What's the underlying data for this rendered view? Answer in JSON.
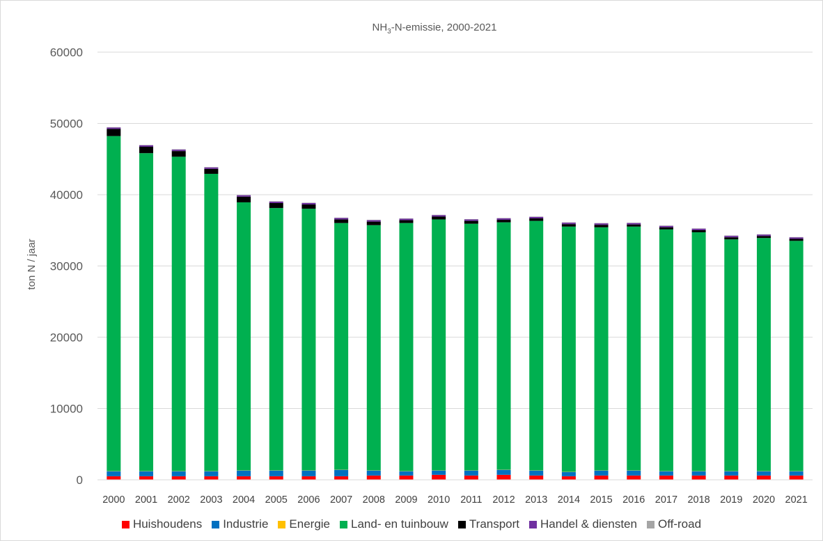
{
  "chart_data": {
    "type": "bar",
    "stacked": true,
    "title": "NH3-N-emissie, 2000-2021",
    "title_main": "NH",
    "title_sub": "3",
    "title_rest": "-N-emissie, 2000-2021",
    "ylabel": "ton N / jaar",
    "xlabel": "",
    "ylim": [
      0,
      60000
    ],
    "yticks": [
      "0",
      "10000",
      "20000",
      "30000",
      "40000",
      "50000",
      "60000"
    ],
    "grid": true,
    "legend_position": "bottom",
    "categories": [
      "2000",
      "2001",
      "2002",
      "2003",
      "2004",
      "2005",
      "2006",
      "2007",
      "2008",
      "2009",
      "2010",
      "2011",
      "2012",
      "2013",
      "2014",
      "2015",
      "2016",
      "2017",
      "2018",
      "2019",
      "2020",
      "2021"
    ],
    "series": [
      {
        "name": "Huishoudens",
        "color": "#ff0000",
        "values": [
          500,
          500,
          500,
          500,
          500,
          500,
          500,
          500,
          600,
          600,
          700,
          600,
          700,
          600,
          500,
          600,
          600,
          600,
          600,
          600,
          600,
          600
        ]
      },
      {
        "name": "Industrie",
        "color": "#0070c0",
        "values": [
          700,
          700,
          700,
          700,
          800,
          800,
          800,
          900,
          700,
          600,
          600,
          700,
          700,
          700,
          600,
          700,
          700,
          600,
          600,
          600,
          600,
          600
        ]
      },
      {
        "name": "Energie",
        "color": "#ffc000",
        "values": [
          30,
          30,
          30,
          30,
          30,
          30,
          30,
          30,
          30,
          30,
          30,
          30,
          30,
          30,
          30,
          30,
          30,
          30,
          30,
          30,
          30,
          30
        ]
      },
      {
        "name": "Land- en tuinbouw",
        "color": "#00b050",
        "values": [
          47000,
          44600,
          44100,
          41700,
          37600,
          36800,
          36700,
          34600,
          34400,
          34800,
          35200,
          34600,
          34700,
          35000,
          34400,
          34100,
          34200,
          33900,
          33500,
          32500,
          32700,
          32300
        ]
      },
      {
        "name": "Transport",
        "color": "#000000",
        "values": [
          1000,
          900,
          800,
          700,
          800,
          700,
          600,
          500,
          500,
          400,
          400,
          400,
          350,
          350,
          350,
          350,
          300,
          300,
          300,
          300,
          280,
          280
        ]
      },
      {
        "name": "Handel & diensten",
        "color": "#7030a0",
        "values": [
          200,
          200,
          200,
          200,
          200,
          200,
          200,
          200,
          200,
          200,
          200,
          200,
          200,
          200,
          200,
          200,
          200,
          200,
          200,
          200,
          200,
          200
        ]
      },
      {
        "name": "Off-road",
        "color": "#a5a5a5",
        "values": [
          50,
          50,
          50,
          50,
          50,
          50,
          50,
          50,
          50,
          50,
          50,
          50,
          50,
          50,
          50,
          50,
          50,
          50,
          50,
          50,
          50,
          50
        ]
      }
    ]
  }
}
